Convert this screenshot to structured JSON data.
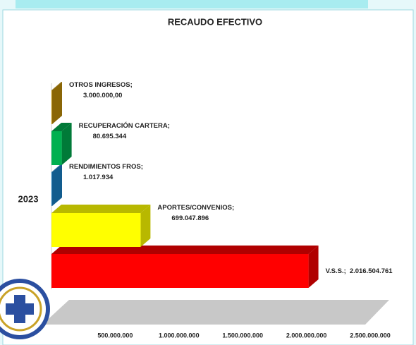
{
  "chart_data": {
    "type": "bar3d",
    "title": "RECAUDO EFECTIVO",
    "categories": [
      "2023"
    ],
    "series": [
      {
        "name": "V.S.S.;",
        "color": "#ff0000",
        "side": "#b00000",
        "values": [
          2016504761
        ],
        "value_labels": [
          "2.016.504.761"
        ]
      },
      {
        "name": "APORTES/CONVENIOS;",
        "color": "#ffff00",
        "side": "#b8b800",
        "values": [
          699047896
        ],
        "value_labels": [
          "699.047.896"
        ]
      },
      {
        "name": "RENDIMIENTOS FROS;",
        "color": "#1f7fc0",
        "side": "#125c8e",
        "values": [
          1017934
        ],
        "value_labels": [
          "1.017.934"
        ]
      },
      {
        "name": "RECUPERACIÓN CARTERA;",
        "color": "#00b050",
        "side": "#007a38",
        "values": [
          80695344
        ],
        "value_labels": [
          "80.695.344"
        ]
      },
      {
        "name": "OTROS INGRESOS;",
        "color": "#c8960a",
        "side": "#8a6606",
        "values": [
          3000000
        ],
        "value_labels": [
          "3.000.000,00"
        ]
      }
    ],
    "xlim": [
      0,
      2500000000
    ],
    "xticks": [
      {
        "value": 500000000,
        "label": "500.000.000"
      },
      {
        "value": 1000000000,
        "label": "1.000.000.000"
      },
      {
        "value": 1500000000,
        "label": "1.500.000.000"
      },
      {
        "value": 2000000000,
        "label": "2.000.000.000"
      },
      {
        "value": 2500000000,
        "label": "2.500.000.000"
      }
    ]
  }
}
